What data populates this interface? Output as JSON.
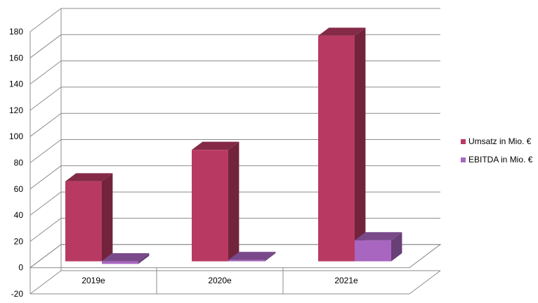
{
  "chart_data": {
    "type": "bar",
    "categories": [
      "2019e",
      "2020e",
      "2021e"
    ],
    "series": [
      {
        "name": "Umsatz in Mio. €",
        "values": [
          61,
          85,
          172
        ],
        "color": "#b83a63"
      },
      {
        "name": "EBITDA in Mio. €",
        "values": [
          -2,
          1,
          16
        ],
        "color": "#a866c0"
      }
    ],
    "ylim": [
      -20,
      180
    ],
    "yticks": [
      "-20",
      "0",
      "20",
      "40",
      "60",
      "80",
      "100",
      "120",
      "140",
      "160",
      "180"
    ],
    "grid": true,
    "legend_position": "right",
    "title": "",
    "xlabel": "",
    "ylabel": ""
  }
}
